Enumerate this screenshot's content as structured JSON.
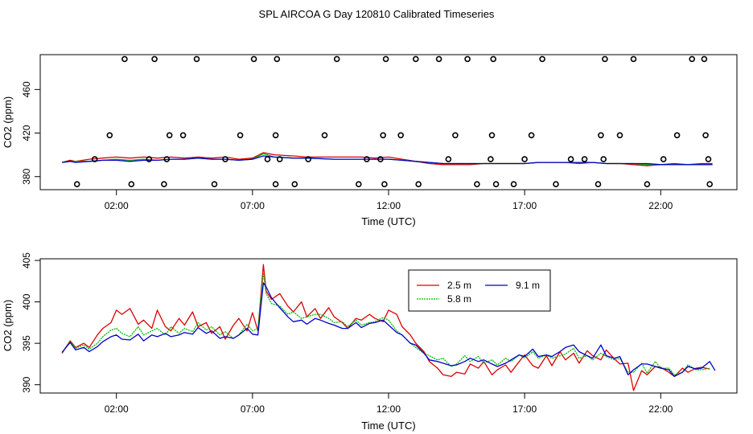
{
  "title": "SPL AIRCOA G  Day 120810  Calibrated Timeseries",
  "colors": {
    "2.5 m": "#dd0000",
    "5.8 m": "#00bb00",
    "9.1 m": "#0000cc",
    "points": "#000000"
  },
  "chart_data": [
    {
      "type": "scatter+line",
      "xlabel": "Time (UTC)",
      "ylabel": "CO2 (ppm)",
      "xlim": [
        -0.8,
        24.8
      ],
      "ylim": [
        368,
        492
      ],
      "x_ticks": [
        2,
        7,
        12,
        17,
        22
      ],
      "x_tick_labels": [
        "02:00",
        "07:00",
        "12:00",
        "17:00",
        "22:00"
      ],
      "y_ticks": [
        380,
        420,
        460
      ],
      "y_tick_labels": [
        "380",
        "420",
        "460"
      ],
      "grid": false,
      "points": {
        "x": [
          0.55,
          1.2,
          1.75,
          2.3,
          2.55,
          3.2,
          3.4,
          3.75,
          3.85,
          3.95,
          4.45,
          4.95,
          5.6,
          6.0,
          6.55,
          7.05,
          7.55,
          7.85,
          7.85,
          7.9,
          8.0,
          8.55,
          9.05,
          9.65,
          10.1,
          10.9,
          11.2,
          11.7,
          11.8,
          11.85,
          11.9,
          12.45,
          13.0,
          13.1,
          13.85,
          14.2,
          14.45,
          14.9,
          15.25,
          15.75,
          15.8,
          15.85,
          15.95,
          16.6,
          17.0,
          17.25,
          17.65,
          18.15,
          18.7,
          19.2,
          19.7,
          19.8,
          19.9,
          19.95,
          20.5,
          21.0,
          21.5,
          22.1,
          22.6,
          23.15,
          23.6,
          23.65,
          23.75,
          23.8
        ],
        "y": [
          373,
          396,
          418,
          488,
          373,
          396,
          488,
          373,
          396,
          418,
          418,
          488,
          373,
          396,
          418,
          488,
          396,
          418,
          373,
          488,
          396,
          373,
          396,
          418,
          488,
          373,
          396,
          396,
          418,
          373,
          488,
          418,
          488,
          373,
          488,
          396,
          418,
          488,
          373,
          396,
          418,
          488,
          373,
          373,
          396,
          418,
          488,
          373,
          396,
          396,
          373,
          418,
          396,
          488,
          418,
          488,
          373,
          396,
          418,
          488,
          488,
          418,
          396,
          373
        ]
      },
      "series": [
        {
          "name": "2.5 m",
          "x": [
            0.0,
            0.3,
            0.5,
            1.0,
            1.5,
            2.0,
            2.5,
            3.0,
            3.5,
            4.0,
            4.5,
            5.0,
            5.5,
            6.0,
            6.5,
            7.0,
            7.4,
            7.8,
            8.5,
            9.0,
            10.0,
            11.0,
            11.5,
            12.0,
            12.5,
            13.0,
            13.5,
            14.0,
            14.5,
            15.0,
            15.5,
            16.0,
            16.5,
            17.0,
            17.5,
            18.0,
            18.5,
            19.0,
            19.5,
            20.0,
            20.5,
            21.0,
            21.5,
            22.0,
            22.5,
            23.0,
            23.5,
            23.9
          ],
          "values": [
            393,
            395,
            394,
            396,
            397,
            398,
            397,
            398,
            397,
            398,
            397,
            398,
            397,
            398,
            396,
            397,
            402,
            400,
            399,
            398,
            398,
            398,
            397,
            398,
            396,
            394,
            392,
            391,
            391,
            391,
            392,
            392,
            392,
            392,
            393,
            393,
            393,
            392,
            393,
            392,
            392,
            391,
            390,
            391,
            392,
            391,
            392,
            392
          ]
        },
        {
          "name": "5.8 m",
          "x": [
            0.0,
            0.3,
            0.5,
            1.0,
            1.5,
            2.0,
            2.5,
            3.0,
            3.5,
            4.0,
            4.5,
            5.0,
            5.5,
            6.0,
            6.5,
            7.0,
            7.4,
            7.8,
            8.5,
            9.0,
            10.0,
            11.0,
            11.5,
            12.0,
            12.5,
            13.0,
            13.5,
            14.0,
            14.5,
            15.0,
            15.5,
            16.0,
            16.5,
            17.0,
            17.5,
            18.0,
            18.5,
            19.0,
            19.5,
            20.0,
            20.5,
            21.0,
            21.5,
            22.0,
            22.5,
            23.0,
            23.5,
            23.9
          ],
          "values": [
            393,
            394,
            394,
            394,
            395,
            396,
            395,
            396,
            395,
            396,
            396,
            397,
            396,
            396,
            395,
            396,
            401,
            398,
            397,
            397,
            396,
            396,
            396,
            396,
            395,
            394,
            393,
            392,
            392,
            392,
            392,
            392,
            392,
            392,
            393,
            393,
            393,
            393,
            393,
            392,
            392,
            392,
            391,
            391,
            391,
            391,
            391,
            391
          ]
        },
        {
          "name": "9.1 m",
          "x": [
            0.0,
            0.3,
            0.5,
            1.0,
            1.5,
            2.0,
            2.5,
            3.0,
            3.5,
            4.0,
            4.5,
            5.0,
            5.5,
            6.0,
            6.5,
            7.0,
            7.4,
            7.8,
            8.5,
            9.0,
            10.0,
            11.0,
            11.5,
            12.0,
            12.5,
            13.0,
            13.5,
            14.0,
            14.5,
            15.0,
            15.5,
            16.0,
            16.5,
            17.0,
            17.5,
            18.0,
            18.5,
            19.0,
            19.5,
            20.0,
            20.5,
            21.0,
            21.5,
            22.0,
            22.5,
            23.0,
            23.5,
            23.9
          ],
          "values": [
            393,
            394,
            393,
            394,
            395,
            395,
            394,
            395,
            395,
            396,
            396,
            397,
            396,
            396,
            395,
            396,
            399,
            398,
            397,
            397,
            396,
            396,
            396,
            396,
            395,
            394,
            393,
            392,
            392,
            392,
            392,
            392,
            392,
            392,
            393,
            393,
            393,
            393,
            393,
            392,
            392,
            392,
            392,
            391,
            391,
            391,
            391,
            391
          ]
        }
      ]
    },
    {
      "type": "line",
      "xlabel": "Time (UTC)",
      "ylabel": "CO2 (ppm)",
      "xlim": [
        -0.8,
        24.8
      ],
      "ylim": [
        389,
        405.2
      ],
      "x_ticks": [
        2,
        7,
        12,
        17,
        22
      ],
      "x_tick_labels": [
        "02:00",
        "07:00",
        "12:00",
        "17:00",
        "22:00"
      ],
      "y_ticks": [
        390,
        395,
        400,
        405
      ],
      "y_tick_labels": [
        "390",
        "395",
        "400",
        "405"
      ],
      "grid": false,
      "legend": {
        "placement": "top-center",
        "entries": [
          "2.5 m",
          "5.8 m",
          "9.1 m"
        ]
      },
      "series": [
        {
          "name": "2.5 m",
          "x": [
            0.0,
            0.3,
            0.5,
            0.8,
            1.0,
            1.3,
            1.5,
            1.8,
            2.0,
            2.2,
            2.5,
            2.8,
            3.0,
            3.3,
            3.5,
            3.8,
            4.0,
            4.3,
            4.5,
            4.8,
            5.0,
            5.3,
            5.5,
            5.8,
            6.0,
            6.3,
            6.5,
            6.8,
            7.0,
            7.2,
            7.4,
            7.5,
            7.7,
            8.0,
            8.3,
            8.5,
            8.8,
            9.0,
            9.3,
            9.5,
            9.8,
            10.0,
            10.3,
            10.5,
            10.8,
            11.0,
            11.3,
            11.5,
            11.8,
            12.0,
            12.3,
            12.5,
            12.8,
            13.0,
            13.3,
            13.5,
            13.8,
            14.0,
            14.3,
            14.5,
            14.8,
            15.0,
            15.3,
            15.5,
            15.8,
            16.0,
            16.3,
            16.5,
            16.8,
            17.0,
            17.3,
            17.5,
            17.8,
            18.0,
            18.3,
            18.5,
            18.8,
            19.0,
            19.3,
            19.5,
            19.8,
            20.0,
            20.3,
            20.5,
            20.8,
            21.0,
            21.3,
            21.5,
            21.8,
            22.0,
            22.3,
            22.5,
            22.8,
            23.0,
            23.3,
            23.5,
            23.8
          ],
          "values": [
            393.8,
            395.3,
            394.5,
            395.0,
            394.5,
            396.0,
            396.8,
            397.5,
            399.0,
            398.5,
            399.2,
            397.3,
            397.8,
            396.8,
            399.0,
            397.0,
            396.5,
            398.0,
            397.2,
            398.8,
            397.0,
            397.5,
            396.2,
            397.0,
            395.5,
            397.2,
            398.0,
            396.5,
            398.7,
            396.5,
            404.5,
            401.3,
            400.3,
            401.0,
            399.5,
            398.8,
            400.0,
            398.2,
            399.2,
            398.0,
            399.3,
            398.2,
            397.5,
            396.8,
            398.0,
            397.8,
            398.5,
            398.0,
            397.6,
            399.0,
            398.5,
            397.0,
            396.0,
            395.0,
            394.0,
            392.8,
            392.0,
            391.2,
            391.0,
            391.5,
            391.3,
            392.5,
            392.0,
            392.8,
            391.2,
            391.8,
            392.4,
            391.5,
            392.8,
            393.6,
            392.3,
            392.0,
            393.5,
            392.3,
            394.0,
            393.0,
            393.8,
            392.6,
            394.1,
            393.5,
            393.0,
            394.2,
            393.1,
            392.5,
            392.6,
            389.3,
            391.7,
            391.2,
            392.2,
            392.1,
            391.5,
            391.0,
            392.0,
            391.5,
            392.0,
            392.1,
            391.9
          ]
        },
        {
          "name": "5.8 m",
          "x": [
            0.0,
            0.3,
            0.5,
            0.8,
            1.0,
            1.3,
            1.5,
            1.8,
            2.0,
            2.2,
            2.5,
            2.8,
            3.0,
            3.3,
            3.5,
            3.8,
            4.0,
            4.3,
            4.5,
            4.8,
            5.0,
            5.3,
            5.5,
            5.8,
            6.0,
            6.3,
            6.5,
            6.8,
            7.0,
            7.2,
            7.4,
            7.5,
            7.7,
            8.0,
            8.3,
            8.5,
            8.8,
            9.0,
            9.3,
            9.5,
            9.8,
            10.0,
            10.3,
            10.5,
            10.8,
            11.0,
            11.3,
            11.5,
            11.8,
            12.0,
            12.3,
            12.5,
            12.8,
            13.0,
            13.3,
            13.5,
            13.8,
            14.0,
            14.3,
            14.5,
            14.8,
            15.0,
            15.3,
            15.5,
            15.8,
            16.0,
            16.3,
            16.5,
            16.8,
            17.0,
            17.3,
            17.5,
            17.8,
            18.0,
            18.3,
            18.5,
            18.8,
            19.0,
            19.3,
            19.5,
            19.8,
            20.0,
            20.3,
            20.5,
            20.8,
            21.0,
            21.3,
            21.5,
            21.8,
            22.0,
            22.3,
            22.5,
            22.8,
            23.0,
            23.3,
            23.5,
            23.8
          ],
          "values": [
            393.9,
            395.2,
            394.4,
            394.8,
            394.3,
            395.0,
            395.8,
            396.6,
            396.8,
            396.2,
            395.8,
            397.0,
            396.0,
            396.5,
            396.8,
            396.0,
            397.0,
            396.2,
            396.8,
            396.4,
            397.5,
            396.6,
            397.0,
            396.0,
            396.4,
            395.6,
            396.0,
            397.3,
            396.5,
            396.8,
            403.5,
            401.0,
            399.8,
            399.5,
            398.5,
            398.8,
            398.0,
            398.2,
            398.5,
            398.5,
            398.0,
            397.5,
            397.6,
            397.0,
            397.8,
            397.2,
            397.5,
            397.6,
            398.1,
            397.8,
            396.5,
            396.0,
            395.0,
            394.5,
            393.8,
            393.5,
            393.0,
            393.2,
            392.2,
            392.5,
            393.5,
            392.8,
            393.4,
            392.6,
            393.0,
            392.4,
            393.2,
            392.8,
            393.6,
            393.2,
            394.0,
            393.2,
            393.6,
            393.2,
            393.5,
            393.7,
            394.4,
            393.2,
            393.5,
            393.0,
            393.8,
            393.4,
            393.0,
            393.2,
            391.5,
            391.5,
            392.6,
            391.4,
            392.8,
            392.0,
            392.0,
            391.2,
            391.5,
            392.4,
            391.8,
            391.8,
            392.0
          ]
        },
        {
          "name": "9.1 m",
          "x": [
            0.0,
            0.3,
            0.5,
            0.8,
            1.0,
            1.3,
            1.5,
            1.8,
            2.0,
            2.2,
            2.5,
            2.8,
            3.0,
            3.3,
            3.5,
            3.8,
            4.0,
            4.3,
            4.5,
            4.8,
            5.0,
            5.3,
            5.5,
            5.8,
            6.0,
            6.3,
            6.5,
            6.8,
            7.0,
            7.2,
            7.4,
            7.5,
            7.7,
            8.0,
            8.3,
            8.5,
            8.8,
            9.0,
            9.3,
            9.5,
            9.8,
            10.0,
            10.3,
            10.5,
            10.8,
            11.0,
            11.3,
            11.5,
            11.8,
            12.0,
            12.3,
            12.5,
            12.8,
            13.0,
            13.3,
            13.5,
            13.8,
            14.0,
            14.3,
            14.5,
            14.8,
            15.0,
            15.3,
            15.5,
            15.8,
            16.0,
            16.3,
            16.5,
            16.8,
            17.0,
            17.3,
            17.5,
            17.8,
            18.0,
            18.3,
            18.5,
            18.8,
            19.0,
            19.3,
            19.5,
            19.8,
            20.0,
            20.3,
            20.5,
            20.8,
            21.0,
            21.3,
            21.5,
            21.8,
            22.0,
            22.3,
            22.5,
            22.8,
            23.0,
            23.3,
            23.5,
            23.8,
            24.0
          ],
          "values": [
            393.9,
            395.1,
            394.2,
            394.5,
            394.0,
            394.6,
            395.2,
            395.8,
            396.0,
            395.5,
            395.4,
            396.1,
            395.3,
            396.0,
            395.8,
            396.2,
            395.8,
            396.0,
            396.3,
            396.1,
            396.9,
            396.2,
            396.5,
            395.6,
            395.8,
            395.6,
            396.0,
            396.8,
            396.1,
            396.0,
            402.3,
            401.8,
            400.5,
            399.3,
            398.2,
            397.6,
            397.8,
            397.3,
            398.0,
            397.8,
            397.4,
            397.2,
            396.8,
            396.8,
            397.5,
            396.9,
            397.4,
            397.5,
            397.8,
            397.2,
            396.3,
            396.0,
            395.0,
            394.8,
            393.8,
            393.0,
            392.8,
            392.6,
            392.3,
            392.4,
            392.8,
            393.2,
            392.8,
            393.0,
            392.5,
            392.2,
            392.6,
            393.0,
            393.6,
            393.4,
            394.3,
            393.4,
            393.6,
            393.4,
            394.0,
            394.5,
            394.8,
            394.0,
            393.5,
            393.2,
            394.8,
            393.5,
            393.2,
            393.4,
            391.2,
            391.8,
            392.5,
            392.5,
            392.2,
            392.0,
            391.8,
            391.0,
            391.5,
            392.2,
            391.9,
            392.0,
            392.8,
            391.7
          ]
        }
      ]
    }
  ]
}
